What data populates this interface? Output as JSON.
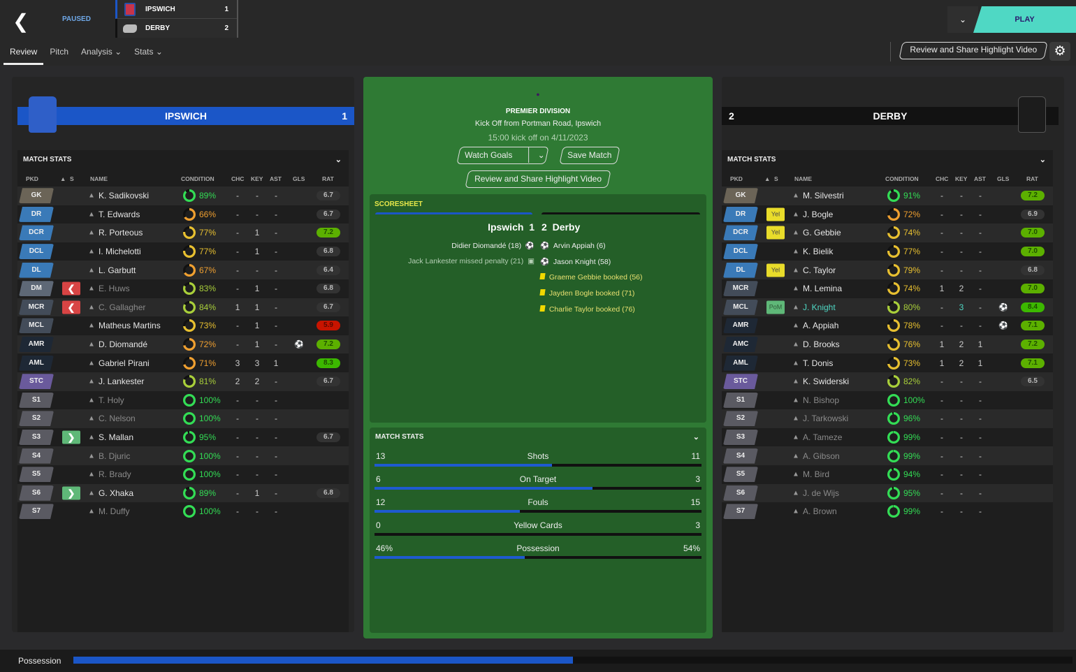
{
  "header": {
    "status": "PAUSED",
    "home": {
      "name": "IPSWICH",
      "score": "1"
    },
    "away": {
      "name": "DERBY",
      "score": "2"
    },
    "tabs": [
      "Review",
      "Pitch",
      "Analysis",
      "Stats"
    ],
    "play": "PLAY",
    "review_button": "Review and Share Highlight Video"
  },
  "colors": {
    "home": "#1b56c7",
    "away": "#111111",
    "accent": "#4fd8c4",
    "pitch": "#2f7a34"
  },
  "match": {
    "competition": "PREMIER DIVISION",
    "venue": "Kick Off from Portman Road, Ipswich",
    "kickoff": "15:00 kick off on 4/11/2023",
    "watch_goals": "Watch Goals",
    "save_match": "Save Match",
    "review_button": "Review and Share Highlight Video"
  },
  "scoresheet": {
    "title": "SCORESHEET",
    "home": "Ipswich",
    "home_score": "1",
    "away_score": "2",
    "away": "Derby",
    "home_events": [
      {
        "text": "Didier Diomandé (18)",
        "icon": "goal"
      },
      {
        "text": "Jack Lankester missed penalty (21)",
        "icon": "missed-penalty"
      }
    ],
    "away_events": [
      {
        "text": "Arvin Appiah (6)",
        "icon": "goal"
      },
      {
        "text": "Jason Knight (58)",
        "icon": "goal"
      },
      {
        "text": "Graeme Gebbie booked (56)",
        "icon": "yellow-card"
      },
      {
        "text": "Jayden Bogle booked (71)",
        "icon": "yellow-card"
      },
      {
        "text": "Charlie Taylor booked (76)",
        "icon": "yellow-card"
      }
    ]
  },
  "match_stats": {
    "title": "MATCH STATS",
    "rows": [
      {
        "label": "Shots",
        "home": "13",
        "away": "11",
        "home_val": 13,
        "away_val": 11
      },
      {
        "label": "On Target",
        "home": "6",
        "away": "3",
        "home_val": 6,
        "away_val": 3
      },
      {
        "label": "Fouls",
        "home": "12",
        "away": "15",
        "home_val": 12,
        "away_val": 15
      },
      {
        "label": "Yellow Cards",
        "home": "0",
        "away": "3",
        "home_val": 0,
        "away_val": 3
      },
      {
        "label": "Possession",
        "home": "46%",
        "away": "54%",
        "home_val": 46,
        "away_val": 54
      }
    ]
  },
  "table": {
    "title": "MATCH STATS",
    "columns": [
      "PKD",
      "S",
      "NAME",
      "CONDITION",
      "CHC",
      "KEY",
      "AST",
      "GLS",
      "RAT"
    ]
  },
  "home_players": [
    [
      "GK",
      "",
      "K. Sadikovski",
      89,
      "-",
      "-",
      "-",
      "",
      "6.7"
    ],
    [
      "DR",
      "",
      "T. Edwards",
      66,
      "-",
      "-",
      "-",
      "",
      "6.7"
    ],
    [
      "DCR",
      "",
      "R. Porteous",
      77,
      "-",
      "1",
      "-",
      "",
      "7.2"
    ],
    [
      "DCL",
      "",
      "I. Michelotti",
      77,
      "-",
      "1",
      "-",
      "",
      "6.8"
    ],
    [
      "DL",
      "",
      "L. Garbutt",
      67,
      "-",
      "-",
      "-",
      "",
      "6.4"
    ],
    [
      "DM",
      "off",
      "E. Huws",
      83,
      "-",
      "1",
      "-",
      "",
      "6.8"
    ],
    [
      "MCR",
      "off",
      "C. Gallagher",
      84,
      "1",
      "1",
      "-",
      "",
      "6.7"
    ],
    [
      "MCL",
      "",
      "Matheus Martins",
      73,
      "-",
      "1",
      "-",
      "",
      "5.9"
    ],
    [
      "AMR",
      "",
      "D. Diomandé",
      72,
      "-",
      "1",
      "-",
      "goal",
      "7.2"
    ],
    [
      "AML",
      "",
      "Gabriel Pirani",
      71,
      "3",
      "3",
      "1",
      "",
      "8.3"
    ],
    [
      "STC",
      "",
      "J. Lankester",
      81,
      "2",
      "2",
      "-",
      "",
      "6.7"
    ],
    [
      "S1",
      "",
      "T. Holy",
      100,
      "-",
      "-",
      "-",
      "",
      ""
    ],
    [
      "S2",
      "",
      "C. Nelson",
      100,
      "-",
      "-",
      "-",
      "",
      ""
    ],
    [
      "S3",
      "on",
      "S. Mallan",
      95,
      "-",
      "-",
      "-",
      "",
      "6.7"
    ],
    [
      "S4",
      "",
      "B. Djuric",
      100,
      "-",
      "-",
      "-",
      "",
      ""
    ],
    [
      "S5",
      "",
      "R. Brady",
      100,
      "-",
      "-",
      "-",
      "",
      ""
    ],
    [
      "S6",
      "on",
      "G. Xhaka",
      89,
      "-",
      "1",
      "-",
      "",
      "6.8"
    ],
    [
      "S7",
      "",
      "M. Duffy",
      100,
      "-",
      "-",
      "-",
      "",
      ""
    ]
  ],
  "away_players": [
    [
      "GK",
      "",
      "M. Silvestri",
      91,
      "-",
      "-",
      "-",
      "",
      "7.2"
    ],
    [
      "DR",
      "Yel",
      "J. Bogle",
      72,
      "-",
      "-",
      "-",
      "",
      "6.9"
    ],
    [
      "DCR",
      "Yel",
      "G. Gebbie",
      74,
      "-",
      "-",
      "-",
      "",
      "7.0"
    ],
    [
      "DCL",
      "",
      "K. Bielik",
      77,
      "-",
      "-",
      "-",
      "",
      "7.0"
    ],
    [
      "DL",
      "Yel",
      "C. Taylor",
      79,
      "-",
      "-",
      "-",
      "",
      "6.8"
    ],
    [
      "MCR",
      "",
      "M. Lemina",
      74,
      "1",
      "2",
      "-",
      "",
      "7.0"
    ],
    [
      "MCL",
      "PoM",
      "J. Knight",
      80,
      "-",
      "3",
      "-",
      "goal",
      "8.4"
    ],
    [
      "AMR",
      "",
      "A. Appiah",
      78,
      "-",
      "-",
      "-",
      "goal",
      "7.1"
    ],
    [
      "AMC",
      "",
      "D. Brooks",
      76,
      "1",
      "2",
      "1",
      "",
      "7.2"
    ],
    [
      "AML",
      "",
      "T. Donis",
      73,
      "1",
      "2",
      "1",
      "",
      "7.1"
    ],
    [
      "STC",
      "",
      "K. Swiderski",
      82,
      "-",
      "-",
      "-",
      "",
      "6.5"
    ],
    [
      "S1",
      "",
      "N. Bishop",
      100,
      "-",
      "-",
      "-",
      "",
      ""
    ],
    [
      "S2",
      "",
      "J. Tarkowski",
      96,
      "-",
      "-",
      "-",
      "",
      ""
    ],
    [
      "S3",
      "",
      "A. Tameze",
      99,
      "-",
      "-",
      "-",
      "",
      ""
    ],
    [
      "S4",
      "",
      "A. Gibson",
      99,
      "-",
      "-",
      "-",
      "",
      ""
    ],
    [
      "S5",
      "",
      "M. Bird",
      94,
      "-",
      "-",
      "-",
      "",
      ""
    ],
    [
      "S6",
      "",
      "J. de Wijs",
      95,
      "-",
      "-",
      "-",
      "",
      ""
    ],
    [
      "S7",
      "",
      "A. Brown",
      99,
      "-",
      "-",
      "-",
      "",
      ""
    ]
  ],
  "footer": {
    "label": "Possession",
    "home_fraction": 0.5
  }
}
